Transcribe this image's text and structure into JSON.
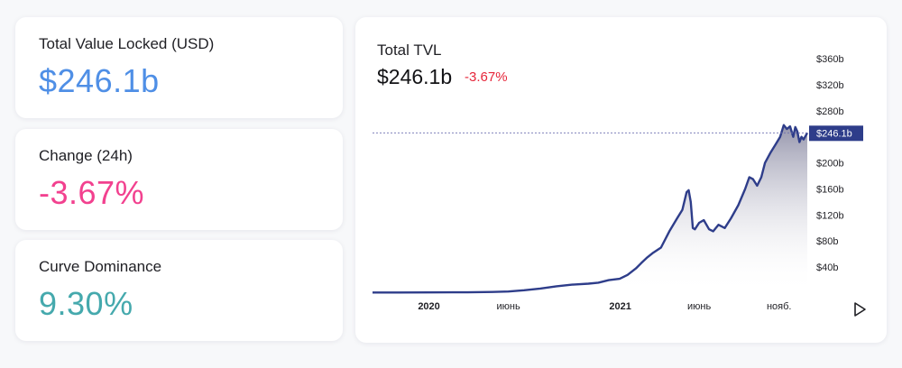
{
  "stats": {
    "tvl": {
      "label": "Total Value Locked (USD)",
      "value": "$246.1b"
    },
    "change": {
      "label": "Change (24h)",
      "value": "-3.67%"
    },
    "dominance": {
      "label": "Curve Dominance",
      "value": "9.30%"
    }
  },
  "colors": {
    "tvl_value": "#4f8fe6",
    "change_value": "#f2418f",
    "dominance_value": "#45a9ad",
    "line": "#2e3d8a",
    "negative": "#e6263a"
  },
  "chart": {
    "title": "Total TVL",
    "headline_value": "$246.1b",
    "headline_change": "-3.67%",
    "current_label": "$246.1b",
    "play_icon": "play-icon"
  },
  "chart_data": {
    "type": "area",
    "title": "Total TVL",
    "y_unit": "billions USD",
    "ylim": [
      0,
      385
    ],
    "yticks": [
      {
        "value": 40,
        "label": "$40b"
      },
      {
        "value": 80,
        "label": "$80b"
      },
      {
        "value": 120,
        "label": "$120b"
      },
      {
        "value": 160,
        "label": "$160b"
      },
      {
        "value": 200,
        "label": "$200b"
      },
      {
        "value": 280,
        "label": "$280b"
      },
      {
        "value": 320,
        "label": "$320b"
      },
      {
        "value": 360,
        "label": "$360b"
      }
    ],
    "xlim": [
      "2019-09-15",
      "2021-12-25"
    ],
    "xticks": [
      {
        "date": "2020-01-01",
        "label": "2020",
        "bold": true
      },
      {
        "date": "2020-06-01",
        "label": "июнь",
        "bold": false
      },
      {
        "date": "2021-01-01",
        "label": "2021",
        "bold": true
      },
      {
        "date": "2021-06-01",
        "label": "июнь",
        "bold": false
      },
      {
        "date": "2021-11-01",
        "label": "нояб.",
        "bold": false
      }
    ],
    "current_value": 246.1,
    "grid": false,
    "series": [
      {
        "points": [
          [
            "2019-09-15",
            1.0
          ],
          [
            "2019-11-01",
            1.0
          ],
          [
            "2020-01-01",
            1.1
          ],
          [
            "2020-02-15",
            1.3
          ],
          [
            "2020-03-15",
            1.2
          ],
          [
            "2020-05-01",
            1.8
          ],
          [
            "2020-06-01",
            2.5
          ],
          [
            "2020-07-01",
            4.5
          ],
          [
            "2020-08-01",
            7.0
          ],
          [
            "2020-09-01",
            10.5
          ],
          [
            "2020-10-01",
            13.0
          ],
          [
            "2020-11-01",
            14.5
          ],
          [
            "2020-11-20",
            16.0
          ],
          [
            "2020-12-10",
            20.0
          ],
          [
            "2020-12-31",
            22.0
          ],
          [
            "2021-01-15",
            28.0
          ],
          [
            "2021-01-31",
            38.0
          ],
          [
            "2021-02-10",
            46.0
          ],
          [
            "2021-02-22",
            55.0
          ],
          [
            "2021-03-05",
            62.0
          ],
          [
            "2021-03-20",
            70.0
          ],
          [
            "2021-04-05",
            95.0
          ],
          [
            "2021-04-20",
            115.0
          ],
          [
            "2021-04-30",
            128.0
          ],
          [
            "2021-05-08",
            155.0
          ],
          [
            "2021-05-12",
            158.0
          ],
          [
            "2021-05-16",
            140.0
          ],
          [
            "2021-05-20",
            100.0
          ],
          [
            "2021-05-24",
            98.0
          ],
          [
            "2021-06-01",
            108.0
          ],
          [
            "2021-06-10",
            112.0
          ],
          [
            "2021-06-20",
            98.0
          ],
          [
            "2021-06-28",
            95.0
          ],
          [
            "2021-07-08",
            105.0
          ],
          [
            "2021-07-20",
            100.0
          ],
          [
            "2021-08-01",
            115.0
          ],
          [
            "2021-08-15",
            135.0
          ],
          [
            "2021-08-28",
            160.0
          ],
          [
            "2021-09-05",
            178.0
          ],
          [
            "2021-09-12",
            175.0
          ],
          [
            "2021-09-20",
            165.0
          ],
          [
            "2021-09-28",
            178.0
          ],
          [
            "2021-10-05",
            200.0
          ],
          [
            "2021-10-15",
            215.0
          ],
          [
            "2021-10-25",
            228.0
          ],
          [
            "2021-11-03",
            240.0
          ],
          [
            "2021-11-10",
            258.0
          ],
          [
            "2021-11-16",
            252.0
          ],
          [
            "2021-11-22",
            256.0
          ],
          [
            "2021-11-28",
            240.0
          ],
          [
            "2021-12-02",
            255.0
          ],
          [
            "2021-12-06",
            248.0
          ],
          [
            "2021-12-10",
            232.0
          ],
          [
            "2021-12-14",
            240.0
          ],
          [
            "2021-12-18",
            236.0
          ],
          [
            "2021-12-25",
            246.1
          ]
        ]
      }
    ]
  }
}
